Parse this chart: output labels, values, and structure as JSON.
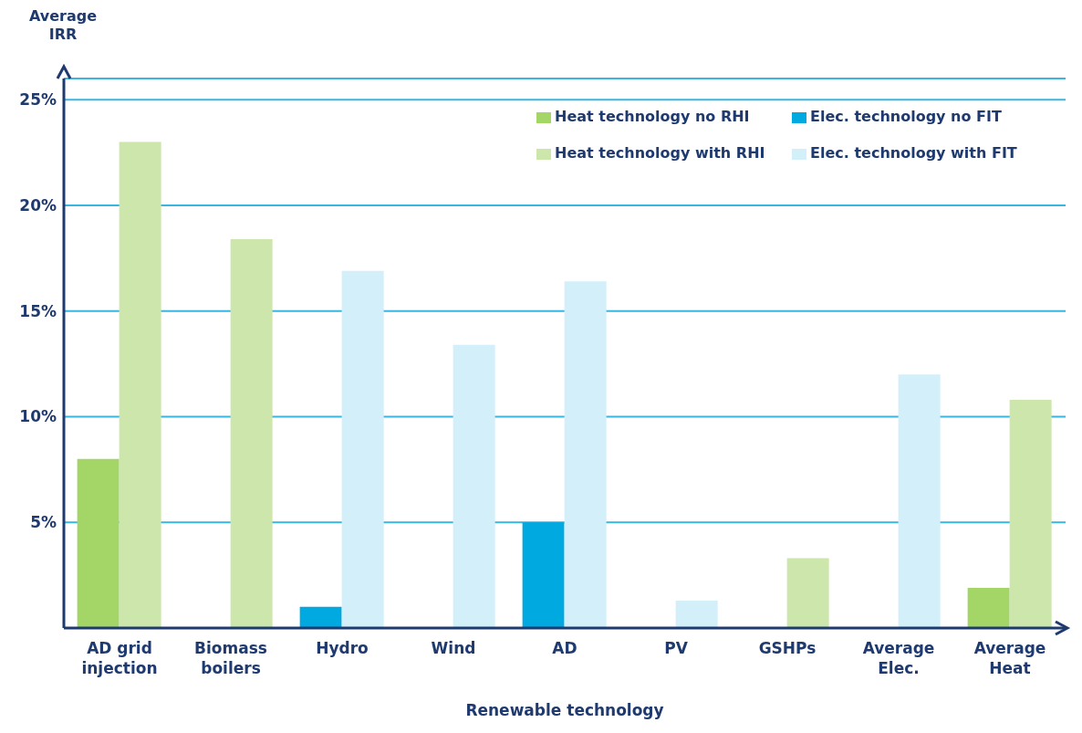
{
  "chart_data": {
    "type": "bar",
    "xlabel": "Renewable technology",
    "ylabel": "Average IRR",
    "categories": [
      "AD grid injection",
      "Biomass boilers",
      "Hydro",
      "Wind",
      "AD",
      "PV",
      "GSHPs",
      "Average Elec.",
      "Average Heat"
    ],
    "series": [
      {
        "name": "Heat technology no RHI",
        "color": "#a3d567",
        "values": [
          8,
          null,
          null,
          null,
          null,
          null,
          null,
          null,
          1.9
        ]
      },
      {
        "name": "Elec. technology no FIT",
        "color": "#00a9e0",
        "values": [
          null,
          null,
          1.0,
          null,
          5.0,
          null,
          null,
          null,
          null
        ]
      },
      {
        "name": "Heat technology with RHI",
        "color": "#cde6ab",
        "values": [
          23,
          18.4,
          null,
          null,
          null,
          null,
          3.3,
          null,
          10.8
        ]
      },
      {
        "name": "Elec. technology with FIT",
        "color": "#d2effa",
        "values": [
          null,
          null,
          16.9,
          13.4,
          16.4,
          1.3,
          null,
          12.0,
          null
        ]
      }
    ],
    "ylim": [
      0,
      26
    ],
    "yticks": [
      {
        "value": 5,
        "label": "5%"
      },
      {
        "value": 10,
        "label": "10%"
      },
      {
        "value": 15,
        "label": "15%"
      },
      {
        "value": 20,
        "label": "20%"
      },
      {
        "value": 25,
        "label": "25%"
      }
    ],
    "grid": "y",
    "legend": "top right"
  }
}
